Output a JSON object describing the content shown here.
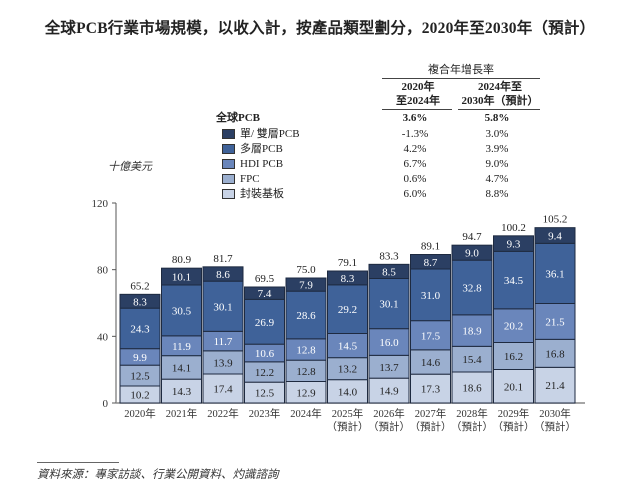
{
  "title": "全球PCB行業市場規模，以收入計，按產品類型劃分，2020年至2030年（預計）",
  "cagr_table": {
    "header": "複合年增長率",
    "columns": [
      {
        "line1": "2020年",
        "line2": "至2024年"
      },
      {
        "line1": "2024年至",
        "line2": "2030年（預計）"
      }
    ],
    "rows": [
      {
        "label": "全球PCB",
        "values": [
          "3.6%",
          "5.8%"
        ],
        "bold": true
      },
      {
        "label": "單/ 雙層PCB",
        "values": [
          "-1.3%",
          "3.0%"
        ],
        "color": "#2b3f63"
      },
      {
        "label": "多層PCB",
        "values": [
          "4.2%",
          "3.9%"
        ],
        "color": "#3f6299"
      },
      {
        "label": "HDI PCB",
        "values": [
          "6.7%",
          "9.0%"
        ],
        "color": "#6a86bb"
      },
      {
        "label": "FPC",
        "values": [
          "0.6%",
          "4.7%"
        ],
        "color": "#9bafcf"
      },
      {
        "label": "封裝基板",
        "values": [
          "6.0%",
          "8.8%"
        ],
        "color": "#c8d3e6"
      }
    ]
  },
  "chart_data": {
    "type": "bar",
    "stacked": true,
    "title": "全球PCB行業市場規模，以收入計，按產品類型劃分，2020年至2030年（預計）",
    "ylabel": "十億美元",
    "xlabel": "",
    "ylim": [
      0,
      120
    ],
    "yticks": [
      0,
      40,
      80,
      120
    ],
    "grid": false,
    "legend_position": "top",
    "categories": [
      [
        "2020年"
      ],
      [
        "2021年"
      ],
      [
        "2022年"
      ],
      [
        "2023年"
      ],
      [
        "2024年"
      ],
      [
        "2025年",
        "（預計）"
      ],
      [
        "2026年",
        "（預計）"
      ],
      [
        "2027年",
        "（預計）"
      ],
      [
        "2028年",
        "（預計）"
      ],
      [
        "2029年",
        "（預計）"
      ],
      [
        "2030年",
        "（預計）"
      ]
    ],
    "totals": [
      "65.2",
      "80.9",
      "81.7",
      "69.5",
      "75.0",
      "79.1",
      "83.3",
      "89.1",
      "94.7",
      "100.2",
      "105.2"
    ],
    "series": [
      {
        "name": "封裝基板",
        "color": "#c8d3e6",
        "text_color": "#222222",
        "values": [
          10.2,
          14.3,
          17.4,
          12.5,
          12.9,
          14.0,
          14.9,
          17.3,
          18.6,
          20.1,
          21.4
        ]
      },
      {
        "name": "FPC",
        "color": "#9bafcf",
        "text_color": "#222222",
        "values": [
          12.5,
          14.1,
          13.9,
          12.2,
          12.8,
          13.2,
          13.7,
          14.6,
          15.4,
          16.2,
          16.8
        ]
      },
      {
        "name": "HDI PCB",
        "color": "#6a86bb",
        "text_color": "#ffffff",
        "values": [
          9.9,
          11.9,
          11.7,
          10.6,
          12.8,
          14.5,
          16.0,
          17.5,
          18.9,
          20.2,
          21.5
        ]
      },
      {
        "name": "多層PCB",
        "color": "#3f6299",
        "text_color": "#ffffff",
        "values": [
          24.3,
          30.5,
          30.1,
          26.9,
          28.6,
          29.2,
          30.1,
          31.0,
          32.8,
          34.5,
          36.1
        ]
      },
      {
        "name": "單/ 雙層PCB",
        "color": "#2b3f63",
        "text_color": "#ffffff",
        "values": [
          8.3,
          10.1,
          8.6,
          7.4,
          7.9,
          8.3,
          8.5,
          8.7,
          9.0,
          9.3,
          9.4
        ]
      }
    ]
  },
  "source_note": "資料來源：專家訪談、行業公開資料、灼識諮詢"
}
